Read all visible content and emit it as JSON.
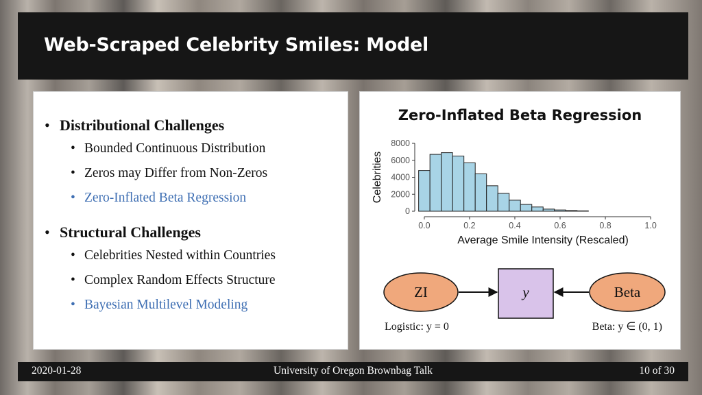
{
  "slide": {
    "title": "Web-Scraped Celebrity Smiles: Model"
  },
  "left": {
    "sections": [
      {
        "heading": "Distributional Challenges",
        "items": [
          {
            "text": "Bounded Continuous Distribution",
            "highlight": false
          },
          {
            "text": "Zeros may Differ from Non-Zeros",
            "highlight": false
          },
          {
            "text": "Zero-Inflated Beta Regression",
            "highlight": true
          }
        ]
      },
      {
        "heading": "Structural Challenges",
        "items": [
          {
            "text": "Celebrities Nested within Countries",
            "highlight": false
          },
          {
            "text": "Complex Random Effects Structure",
            "highlight": false
          },
          {
            "text": "Bayesian Multilevel Modeling",
            "highlight": true
          }
        ]
      }
    ]
  },
  "right": {
    "title": "Zero-Inflated Beta Regression",
    "diagram": {
      "zi_label": "ZI",
      "y_label": "y",
      "beta_label": "Beta",
      "logistic_caption": "Logistic: y = 0",
      "beta_caption": "Beta: y ∈ (0, 1)"
    }
  },
  "chart_data": {
    "type": "bar",
    "title": "",
    "xlabel": "Average Smile Intensity (Rescaled)",
    "ylabel": "Celebrities",
    "xlim": [
      -0.03,
      1.03
    ],
    "ylim": [
      0,
      8000
    ],
    "x_ticks": [
      "0.0",
      "0.2",
      "0.4",
      "0.6",
      "0.8",
      "1.0"
    ],
    "y_ticks": [
      "0",
      "2000",
      "4000",
      "6000",
      "8000"
    ],
    "bin_width": 0.05,
    "bin_starts": [
      -0.025,
      0.025,
      0.075,
      0.125,
      0.175,
      0.225,
      0.275,
      0.325,
      0.375,
      0.425,
      0.475,
      0.525,
      0.575,
      0.625,
      0.675
    ],
    "values": [
      4800,
      6700,
      6900,
      6500,
      5700,
      4400,
      3000,
      2100,
      1300,
      800,
      500,
      250,
      150,
      80,
      40
    ],
    "bar_color": "#a8d4e6",
    "grid": false
  },
  "footer": {
    "date": "2020-01-28",
    "event": "University of Oregon Brownbag Talk",
    "page": "10 of 30"
  },
  "colors": {
    "highlight": "#3f6fb3",
    "zi_fill": "#f0a87c",
    "y_fill": "#d9c3ea",
    "beta_fill": "#f0a87c"
  }
}
